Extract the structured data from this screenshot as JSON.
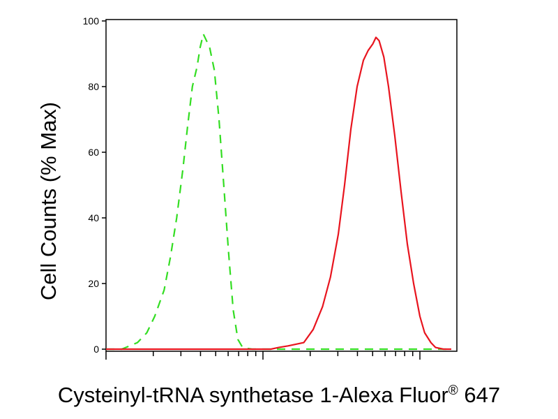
{
  "chart_data": {
    "type": "line",
    "ylabel": "Cell Counts (% Max)",
    "xlabel": {
      "main": "Cysteinyl-tRNA synthetase 1-Alexa Fluor",
      "superscript": "®",
      "suffix": " 647"
    },
    "ylim": [
      0,
      100
    ],
    "yticks": [
      "0",
      "20",
      "40",
      "60",
      "80",
      "100"
    ],
    "x_scale": "log",
    "xlim_decades": [
      0,
      2.2
    ],
    "series": [
      {
        "color": "#33dd22",
        "style": "dashed",
        "points": [
          [
            0.0,
            0
          ],
          [
            0.1,
            0
          ],
          [
            0.15,
            1
          ],
          [
            0.2,
            2
          ],
          [
            0.26,
            5
          ],
          [
            0.31,
            10
          ],
          [
            0.37,
            18
          ],
          [
            0.41,
            28
          ],
          [
            0.45,
            40
          ],
          [
            0.49,
            55
          ],
          [
            0.52,
            68
          ],
          [
            0.55,
            80
          ],
          [
            0.58,
            86
          ],
          [
            0.6,
            92
          ],
          [
            0.62,
            96
          ],
          [
            0.64,
            94
          ],
          [
            0.66,
            92
          ],
          [
            0.69,
            85
          ],
          [
            0.72,
            70
          ],
          [
            0.75,
            50
          ],
          [
            0.78,
            30
          ],
          [
            0.81,
            12
          ],
          [
            0.84,
            3
          ],
          [
            0.87,
            0.5
          ],
          [
            0.93,
            0
          ],
          [
            1.5,
            0
          ],
          [
            2.2,
            0
          ]
        ]
      },
      {
        "color": "#e8141e",
        "style": "solid",
        "points": [
          [
            0.0,
            0
          ],
          [
            1.05,
            0
          ],
          [
            1.1,
            0.5
          ],
          [
            1.16,
            1
          ],
          [
            1.26,
            2
          ],
          [
            1.32,
            6
          ],
          [
            1.38,
            13
          ],
          [
            1.43,
            22
          ],
          [
            1.48,
            35
          ],
          [
            1.52,
            50
          ],
          [
            1.56,
            67
          ],
          [
            1.6,
            80
          ],
          [
            1.64,
            88
          ],
          [
            1.67,
            91
          ],
          [
            1.7,
            93
          ],
          [
            1.72,
            95
          ],
          [
            1.74,
            94
          ],
          [
            1.77,
            89
          ],
          [
            1.8,
            80
          ],
          [
            1.84,
            65
          ],
          [
            1.88,
            48
          ],
          [
            1.92,
            32
          ],
          [
            1.96,
            20
          ],
          [
            2.0,
            10
          ],
          [
            2.03,
            5
          ],
          [
            2.07,
            2
          ],
          [
            2.1,
            0.5
          ],
          [
            2.15,
            0
          ],
          [
            2.2,
            0
          ]
        ]
      }
    ],
    "grid": false,
    "legend": "none"
  }
}
